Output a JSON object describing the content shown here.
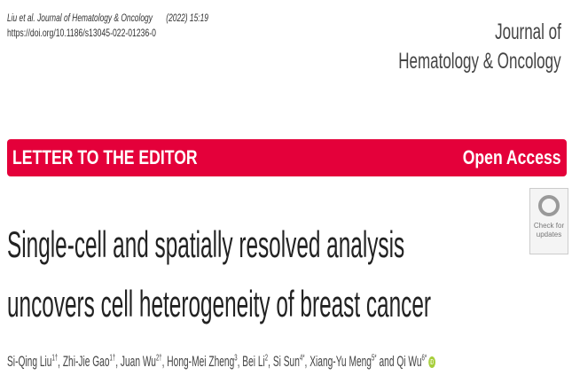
{
  "citation": {
    "journal_ref": "Liu et al. Journal of Hematology & Oncology",
    "year_volume": "(2022) 15:19",
    "doi": "https://doi.org/10.1186/s13045-022-01236-0"
  },
  "journal_name": {
    "line1": "Journal of",
    "line2": "Hematology & Oncology"
  },
  "banner": {
    "article_type": "LETTER TO THE EDITOR",
    "access": "Open Access",
    "color": "#e4003a"
  },
  "title": {
    "line1": "Single-cell and spatially resolved analysis",
    "line2": "uncovers cell heterogeneity of breast cancer"
  },
  "badge": {
    "line1": "Check for",
    "line2": "updates"
  },
  "authors": [
    {
      "name": "Si-Qing Liu",
      "sup": "1†"
    },
    {
      "name": "Zhi-Jie Gao",
      "sup": "1†"
    },
    {
      "name": "Juan Wu",
      "sup": "2†"
    },
    {
      "name": "Hong-Mei Zheng",
      "sup": "3"
    },
    {
      "name": "Bei Li",
      "sup": "2"
    },
    {
      "name": "Si Sun",
      "sup": "4*"
    },
    {
      "name": "Xiang-Yu Meng",
      "sup": "5*"
    },
    {
      "name": "Qi Wu",
      "sup": "6*"
    }
  ],
  "authors_conj": "and",
  "orcid_icon": "iD"
}
